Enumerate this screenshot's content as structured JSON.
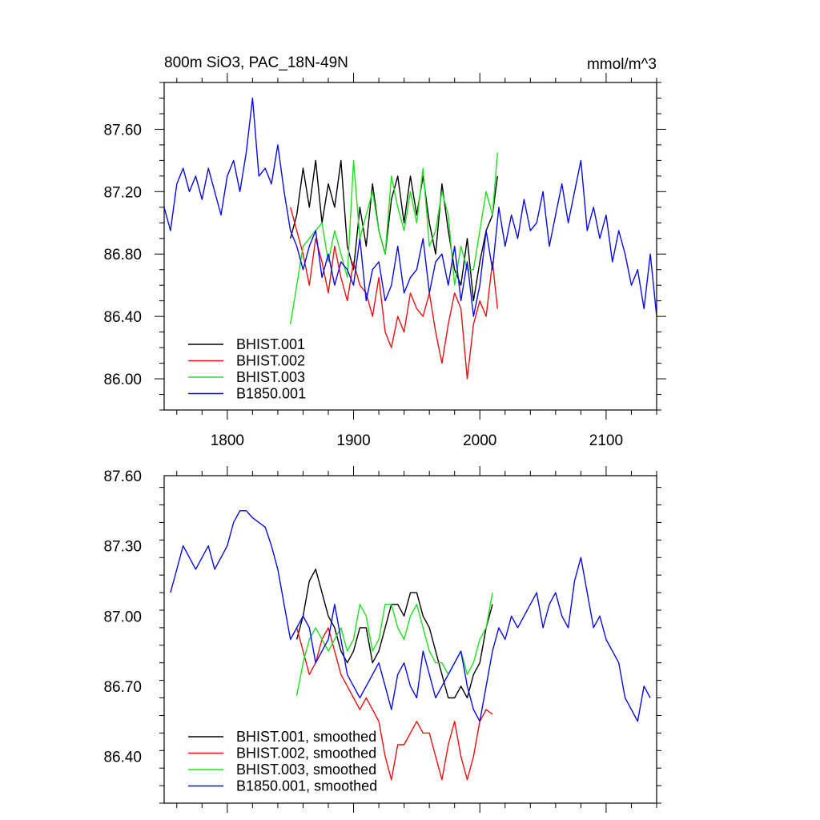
{
  "page": {
    "title_left": "800m SiO3, PAC_18N-49N",
    "title_right": "mmol/m^3"
  },
  "colors": {
    "BHIST.001": "#000000",
    "BHIST.002": "#e8120f",
    "BHIST.003": "#1ee01e",
    "B1850.001": "#0a0ae6"
  },
  "chart_data": [
    {
      "type": "line",
      "title": "800m SiO3, PAC_18N-49N",
      "units_label": "mmol/m^3",
      "xlim": [
        1750,
        2140
      ],
      "ylim": [
        85.8,
        87.9
      ],
      "xticks": [
        1800,
        1900,
        2000,
        2100
      ],
      "xtick_labels": [
        "1800",
        "1900",
        "2000",
        "2100"
      ],
      "yticks": [
        86.0,
        86.4,
        86.8,
        87.2,
        87.6
      ],
      "ytick_labels": [
        "86.00",
        "86.40",
        "86.80",
        "87.20",
        "87.60"
      ],
      "legend_position": "bottom-left",
      "series": [
        {
          "name": "BHIST.001",
          "x": [
            1850,
            1855,
            1860,
            1865,
            1870,
            1875,
            1880,
            1885,
            1890,
            1895,
            1900,
            1905,
            1910,
            1915,
            1920,
            1925,
            1930,
            1935,
            1940,
            1945,
            1950,
            1955,
            1960,
            1965,
            1970,
            1975,
            1980,
            1985,
            1990,
            1995,
            2000,
            2005,
            2010,
            2014
          ],
          "y": [
            86.9,
            87.05,
            87.35,
            87.1,
            87.4,
            87.0,
            87.25,
            87.1,
            87.4,
            86.85,
            86.7,
            87.1,
            86.85,
            87.25,
            86.95,
            86.8,
            87.15,
            87.3,
            87.0,
            87.3,
            87.05,
            87.3,
            87.0,
            86.8,
            87.25,
            86.95,
            86.7,
            86.6,
            86.9,
            86.5,
            86.75,
            86.95,
            87.05,
            87.3
          ]
        },
        {
          "name": "BHIST.002",
          "x": [
            1850,
            1855,
            1860,
            1865,
            1870,
            1875,
            1880,
            1885,
            1890,
            1895,
            1900,
            1905,
            1910,
            1915,
            1920,
            1925,
            1930,
            1935,
            1940,
            1945,
            1950,
            1955,
            1960,
            1965,
            1970,
            1975,
            1980,
            1985,
            1990,
            1995,
            2000,
            2005,
            2010,
            2014
          ],
          "y": [
            87.1,
            86.95,
            86.8,
            86.6,
            86.9,
            86.75,
            86.55,
            86.85,
            86.65,
            86.5,
            86.75,
            86.6,
            86.55,
            86.4,
            86.65,
            86.3,
            86.2,
            86.4,
            86.3,
            86.55,
            86.45,
            86.4,
            86.55,
            86.3,
            86.1,
            86.35,
            86.55,
            86.45,
            86.0,
            86.35,
            86.5,
            86.4,
            86.75,
            86.45
          ]
        },
        {
          "name": "BHIST.003",
          "x": [
            1850,
            1855,
            1860,
            1865,
            1870,
            1875,
            1880,
            1885,
            1890,
            1895,
            1900,
            1905,
            1910,
            1915,
            1920,
            1925,
            1930,
            1935,
            1940,
            1945,
            1950,
            1955,
            1960,
            1965,
            1970,
            1975,
            1980,
            1985,
            1990,
            1995,
            2000,
            2005,
            2010,
            2014
          ],
          "y": [
            86.35,
            86.6,
            86.85,
            86.9,
            86.95,
            87.0,
            86.75,
            86.95,
            86.8,
            86.65,
            87.4,
            86.9,
            87.05,
            87.2,
            86.95,
            86.8,
            87.3,
            87.1,
            86.95,
            87.2,
            87.0,
            87.35,
            86.85,
            86.95,
            87.2,
            87.05,
            86.6,
            86.85,
            86.7,
            86.7,
            86.95,
            87.2,
            87.05,
            87.45
          ]
        },
        {
          "name": "B1850.001",
          "x": [
            1750,
            1755,
            1760,
            1765,
            1770,
            1775,
            1780,
            1785,
            1790,
            1795,
            1800,
            1805,
            1810,
            1815,
            1820,
            1825,
            1830,
            1835,
            1840,
            1845,
            1850,
            1855,
            1860,
            1865,
            1870,
            1875,
            1880,
            1885,
            1890,
            1895,
            1900,
            1905,
            1910,
            1915,
            1920,
            1925,
            1930,
            1935,
            1940,
            1945,
            1950,
            1955,
            1960,
            1965,
            1970,
            1975,
            1980,
            1985,
            1990,
            1995,
            2000,
            2005,
            2010,
            2015,
            2020,
            2025,
            2030,
            2035,
            2040,
            2045,
            2050,
            2055,
            2060,
            2065,
            2070,
            2075,
            2080,
            2085,
            2090,
            2095,
            2100,
            2105,
            2110,
            2115,
            2120,
            2125,
            2130,
            2135,
            2140
          ],
          "y": [
            87.1,
            86.95,
            87.25,
            87.35,
            87.2,
            87.3,
            87.15,
            87.35,
            87.2,
            87.05,
            87.3,
            87.4,
            87.2,
            87.45,
            87.8,
            87.3,
            87.35,
            87.25,
            87.5,
            87.2,
            86.95,
            86.85,
            86.7,
            86.85,
            86.95,
            86.65,
            86.8,
            86.6,
            86.75,
            86.7,
            86.6,
            86.9,
            86.5,
            86.7,
            86.75,
            86.5,
            86.6,
            86.85,
            86.55,
            86.65,
            86.7,
            86.9,
            86.55,
            86.75,
            86.8,
            86.6,
            86.85,
            86.5,
            86.75,
            86.4,
            86.6,
            86.95,
            86.7,
            87.1,
            86.85,
            87.05,
            86.9,
            87.15,
            86.95,
            87.0,
            87.2,
            86.85,
            87.05,
            87.25,
            87.0,
            87.2,
            87.4,
            86.95,
            87.1,
            86.9,
            87.05,
            86.75,
            86.95,
            86.8,
            86.6,
            86.7,
            86.45,
            86.8,
            86.4
          ]
        }
      ]
    },
    {
      "type": "line",
      "title": "",
      "xlim": [
        1750,
        2140
      ],
      "ylim": [
        86.2,
        87.6
      ],
      "xticks": [
        1800,
        1900,
        2000,
        2100
      ],
      "yticks": [
        86.4,
        86.7,
        87.0,
        87.3,
        87.6
      ],
      "ytick_labels": [
        "86.40",
        "86.70",
        "87.00",
        "87.30",
        "87.60"
      ],
      "legend_position": "bottom-left",
      "series": [
        {
          "name": "BHIST.001, smoothed",
          "x": [
            1855,
            1860,
            1865,
            1870,
            1875,
            1880,
            1885,
            1890,
            1895,
            1900,
            1905,
            1910,
            1915,
            1920,
            1925,
            1930,
            1935,
            1940,
            1945,
            1950,
            1955,
            1960,
            1965,
            1970,
            1975,
            1980,
            1985,
            1990,
            1995,
            2000,
            2005,
            2010
          ],
          "y": [
            86.9,
            87.0,
            87.15,
            87.2,
            87.1,
            87.0,
            86.95,
            86.85,
            86.8,
            86.85,
            86.95,
            86.95,
            86.8,
            86.85,
            86.95,
            87.05,
            87.05,
            87.0,
            87.1,
            87.1,
            87.0,
            86.95,
            86.85,
            86.75,
            86.65,
            86.65,
            86.7,
            86.65,
            86.75,
            86.8,
            86.95,
            87.05
          ]
        },
        {
          "name": "BHIST.002, smoothed",
          "x": [
            1855,
            1860,
            1865,
            1870,
            1875,
            1880,
            1885,
            1890,
            1895,
            1900,
            1905,
            1910,
            1915,
            1920,
            1925,
            1930,
            1935,
            1940,
            1945,
            1950,
            1955,
            1960,
            1965,
            1970,
            1975,
            1980,
            1985,
            1990,
            1995,
            2000,
            2005,
            2010
          ],
          "y": [
            86.95,
            86.85,
            86.75,
            86.8,
            86.9,
            86.95,
            86.85,
            86.75,
            86.7,
            86.65,
            86.6,
            86.65,
            86.6,
            86.55,
            86.4,
            86.3,
            86.45,
            86.45,
            86.5,
            86.55,
            86.5,
            86.5,
            86.4,
            86.3,
            86.45,
            86.55,
            86.4,
            86.3,
            86.4,
            86.55,
            86.6,
            86.58
          ]
        },
        {
          "name": "BHIST.003, smoothed",
          "x": [
            1855,
            1860,
            1865,
            1870,
            1875,
            1880,
            1885,
            1890,
            1895,
            1900,
            1905,
            1910,
            1915,
            1920,
            1925,
            1930,
            1935,
            1940,
            1945,
            1950,
            1955,
            1960,
            1965,
            1970,
            1975,
            1980,
            1985,
            1990,
            1995,
            2000,
            2005,
            2010
          ],
          "y": [
            86.66,
            86.8,
            86.9,
            86.95,
            86.9,
            86.85,
            86.9,
            86.95,
            86.85,
            86.9,
            87.05,
            87.0,
            86.85,
            86.9,
            87.05,
            87.05,
            86.95,
            86.9,
            87.0,
            87.05,
            86.95,
            86.85,
            86.8,
            86.8,
            86.75,
            86.8,
            86.85,
            86.75,
            86.8,
            86.9,
            86.95,
            87.1
          ]
        },
        {
          "name": "B1850.001, smoothed",
          "x": [
            1755,
            1760,
            1765,
            1770,
            1775,
            1780,
            1785,
            1790,
            1795,
            1800,
            1805,
            1810,
            1815,
            1820,
            1825,
            1830,
            1835,
            1840,
            1845,
            1850,
            1855,
            1860,
            1865,
            1870,
            1875,
            1880,
            1885,
            1890,
            1895,
            1900,
            1905,
            1910,
            1915,
            1920,
            1925,
            1930,
            1935,
            1940,
            1945,
            1950,
            1955,
            1960,
            1965,
            1970,
            1975,
            1980,
            1985,
            1990,
            1995,
            2000,
            2005,
            2010,
            2015,
            2020,
            2025,
            2030,
            2035,
            2040,
            2045,
            2050,
            2055,
            2060,
            2065,
            2070,
            2075,
            2080,
            2085,
            2090,
            2095,
            2100,
            2105,
            2110,
            2115,
            2120,
            2125,
            2130,
            2135
          ],
          "y": [
            87.1,
            87.2,
            87.3,
            87.25,
            87.2,
            87.25,
            87.3,
            87.2,
            87.25,
            87.3,
            87.4,
            87.45,
            87.45,
            87.42,
            87.4,
            87.38,
            87.3,
            87.2,
            87.05,
            86.9,
            86.95,
            87.0,
            86.95,
            86.8,
            86.85,
            86.9,
            87.05,
            86.9,
            86.75,
            86.7,
            86.65,
            86.7,
            86.75,
            86.8,
            86.7,
            86.6,
            86.75,
            86.8,
            86.7,
            86.65,
            86.85,
            86.75,
            86.65,
            86.7,
            86.75,
            86.8,
            86.85,
            86.7,
            86.6,
            86.55,
            86.7,
            86.85,
            86.95,
            86.9,
            87.0,
            86.95,
            87.0,
            87.05,
            87.1,
            86.95,
            87.05,
            87.1,
            87.0,
            86.95,
            87.15,
            87.25,
            87.1,
            86.95,
            87.0,
            86.9,
            86.85,
            86.8,
            86.65,
            86.6,
            86.55,
            86.7,
            86.65
          ]
        }
      ]
    }
  ]
}
